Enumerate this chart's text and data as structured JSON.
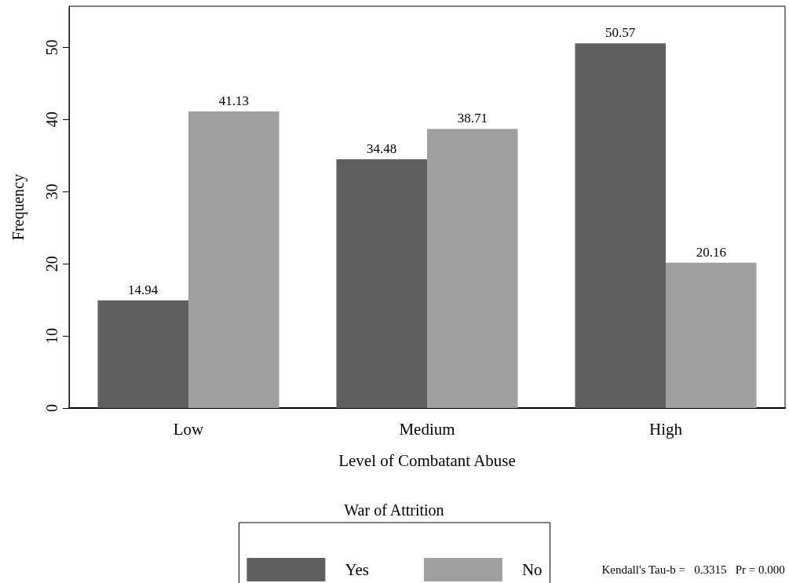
{
  "chart_data": {
    "type": "bar",
    "xlabel": "Level of Combatant Abuse",
    "ylabel": "Frequency",
    "legend_title": "War of Attrition",
    "categories": [
      "Low",
      "Medium",
      "High"
    ],
    "series": [
      {
        "name": "Yes",
        "color": "#5f5f5f",
        "values": [
          14.94,
          34.48,
          50.57
        ]
      },
      {
        "name": "No",
        "color": "#a0a0a0",
        "values": [
          41.13,
          38.71,
          20.16
        ]
      }
    ],
    "ylim": [
      0,
      55.7
    ],
    "yticks": [
      0,
      10,
      20,
      30,
      40,
      50
    ],
    "grid": false,
    "legend": "bottom",
    "data_labels": true,
    "annotations": [
      "Kendall's Tau-b =   0.3315   Pr = 0.000"
    ]
  }
}
